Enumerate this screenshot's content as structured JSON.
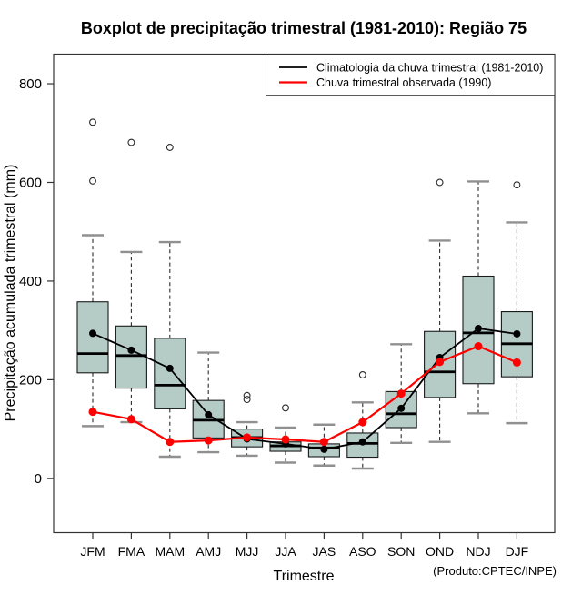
{
  "title": "Boxplot de precipitação trimestral (1981-2010): Região 75",
  "footer": "(Produto:CPTEC/INPE)",
  "chart_data": {
    "type": "boxplot",
    "title": "Boxplot de precipitação trimestral (1981-2010): Região 75",
    "xlabel": "Trimestre",
    "ylabel": "Precipitação acumulada trimestral (mm)",
    "yticks": [
      0,
      200,
      400,
      600,
      800
    ],
    "ylim": [
      -110,
      860
    ],
    "grid": false,
    "legend_position": "top-right",
    "categories": [
      "JFM",
      "FMA",
      "MAM",
      "AMJ",
      "MJJ",
      "JJA",
      "JAS",
      "ASO",
      "SON",
      "OND",
      "NDJ",
      "DJF"
    ],
    "boxes": [
      {
        "q1": 214,
        "median": 253,
        "q3": 358,
        "whisker_low": 106,
        "whisker_high": 493,
        "outliers": [
          603,
          722
        ]
      },
      {
        "q1": 183,
        "median": 249,
        "q3": 309,
        "whisker_low": 114,
        "whisker_high": 459,
        "outliers": [
          681
        ]
      },
      {
        "q1": 141,
        "median": 189,
        "q3": 284,
        "whisker_low": 44,
        "whisker_high": 479,
        "outliers": [
          671
        ]
      },
      {
        "q1": 82,
        "median": 118,
        "q3": 158,
        "whisker_low": 53,
        "whisker_high": 255,
        "outliers": []
      },
      {
        "q1": 64,
        "median": 83,
        "q3": 100,
        "whisker_low": 46,
        "whisker_high": 114,
        "outliers": [
          160,
          168
        ]
      },
      {
        "q1": 55,
        "median": 66,
        "q3": 74,
        "whisker_low": 32,
        "whisker_high": 103,
        "outliers": [
          143
        ]
      },
      {
        "q1": 44,
        "median": 62,
        "q3": 70,
        "whisker_low": 26,
        "whisker_high": 109,
        "outliers": []
      },
      {
        "q1": 43,
        "median": 71,
        "q3": 92,
        "whisker_low": 20,
        "whisker_high": 154,
        "outliers": [
          210
        ]
      },
      {
        "q1": 103,
        "median": 131,
        "q3": 176,
        "whisker_low": 72,
        "whisker_high": 272,
        "outliers": []
      },
      {
        "q1": 164,
        "median": 216,
        "q3": 298,
        "whisker_low": 74,
        "whisker_high": 482,
        "outliers": [
          600
        ]
      },
      {
        "q1": 192,
        "median": 295,
        "q3": 410,
        "whisker_low": 132,
        "whisker_high": 602,
        "outliers": []
      },
      {
        "q1": 206,
        "median": 273,
        "q3": 338,
        "whisker_low": 112,
        "whisker_high": 519,
        "outliers": [
          595
        ]
      }
    ],
    "series": [
      {
        "name": "Climatologia da chuva trimestral (1981-2010)",
        "color": "#000000",
        "values": [
          294,
          260,
          223,
          129,
          80,
          70,
          59,
          74,
          142,
          245,
          304,
          293
        ]
      },
      {
        "name": "Chuva trimestral observada (1990)",
        "color": "#ff0000",
        "values": [
          135,
          120,
          74,
          77,
          83,
          79,
          74,
          114,
          172,
          236,
          268,
          235
        ]
      }
    ],
    "colors": {
      "box_fill": "#b5cbc6",
      "box_border": "#1a1a1a",
      "median": "#000000",
      "whisker": "#2b2b2b",
      "staple": "#909090",
      "outlier": "#2b2b2b",
      "frame": "#333333"
    }
  }
}
